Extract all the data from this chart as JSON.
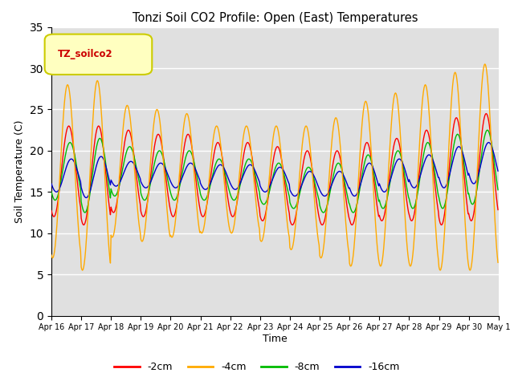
{
  "title": "Tonzi Soil CO2 Profile: Open (East) Temperatures",
  "xlabel": "Time",
  "ylabel": "Soil Temperature (C)",
  "ylim": [
    0,
    35
  ],
  "yticks": [
    0,
    5,
    10,
    15,
    20,
    25,
    30,
    35
  ],
  "legend_title": "TZ_soilco2",
  "series": [
    "-2cm",
    "-4cm",
    "-8cm",
    "-16cm"
  ],
  "colors": [
    "#ff0000",
    "#ffaa00",
    "#00bb00",
    "#0000cc"
  ],
  "background_color": "#e0e0e0",
  "n_days": 15,
  "tick_labels": [
    "Apr 16",
    "Apr 17",
    "Apr 18",
    "Apr 19",
    "Apr 20",
    "Apr 21",
    "Apr 22",
    "Apr 23",
    "Apr 24",
    "Apr 25",
    "Apr 26",
    "Apr 27",
    "Apr 28",
    "Apr 29",
    "Apr 30",
    "May 1"
  ],
  "base_2cm": [
    17.5,
    17.0,
    17.5,
    17.0,
    17.0,
    16.5,
    16.5,
    16.0,
    15.5,
    15.5,
    16.0,
    16.5,
    17.0,
    17.5,
    18.0
  ],
  "base_4cm": [
    17.5,
    17.0,
    17.5,
    17.0,
    17.0,
    16.5,
    16.5,
    16.0,
    15.5,
    15.5,
    16.0,
    16.5,
    17.0,
    17.5,
    18.0
  ],
  "base_8cm": [
    17.5,
    17.0,
    17.5,
    17.0,
    17.0,
    16.5,
    16.5,
    16.0,
    15.5,
    15.5,
    16.0,
    16.5,
    17.0,
    17.5,
    18.0
  ],
  "base_16cm": [
    17.0,
    16.8,
    17.2,
    17.0,
    17.0,
    16.8,
    16.8,
    16.5,
    16.0,
    16.0,
    16.5,
    17.0,
    17.5,
    18.0,
    18.5
  ],
  "amp_2cm": [
    5.5,
    6.0,
    5.0,
    5.0,
    5.0,
    4.5,
    4.5,
    4.5,
    4.5,
    4.5,
    5.0,
    5.0,
    5.5,
    6.5,
    6.5
  ],
  "amp_4cm": [
    10.5,
    11.5,
    8.0,
    8.0,
    7.5,
    6.5,
    6.5,
    7.0,
    7.5,
    8.5,
    10.0,
    10.5,
    11.0,
    12.0,
    12.5
  ],
  "amp_8cm": [
    3.5,
    4.5,
    3.0,
    3.0,
    3.0,
    2.5,
    2.5,
    2.5,
    2.5,
    3.0,
    3.5,
    3.5,
    4.0,
    4.5,
    4.5
  ],
  "amp_16cm": [
    2.0,
    2.5,
    1.5,
    1.5,
    1.5,
    1.5,
    1.5,
    1.5,
    1.5,
    1.5,
    2.0,
    2.0,
    2.0,
    2.5,
    2.5
  ]
}
